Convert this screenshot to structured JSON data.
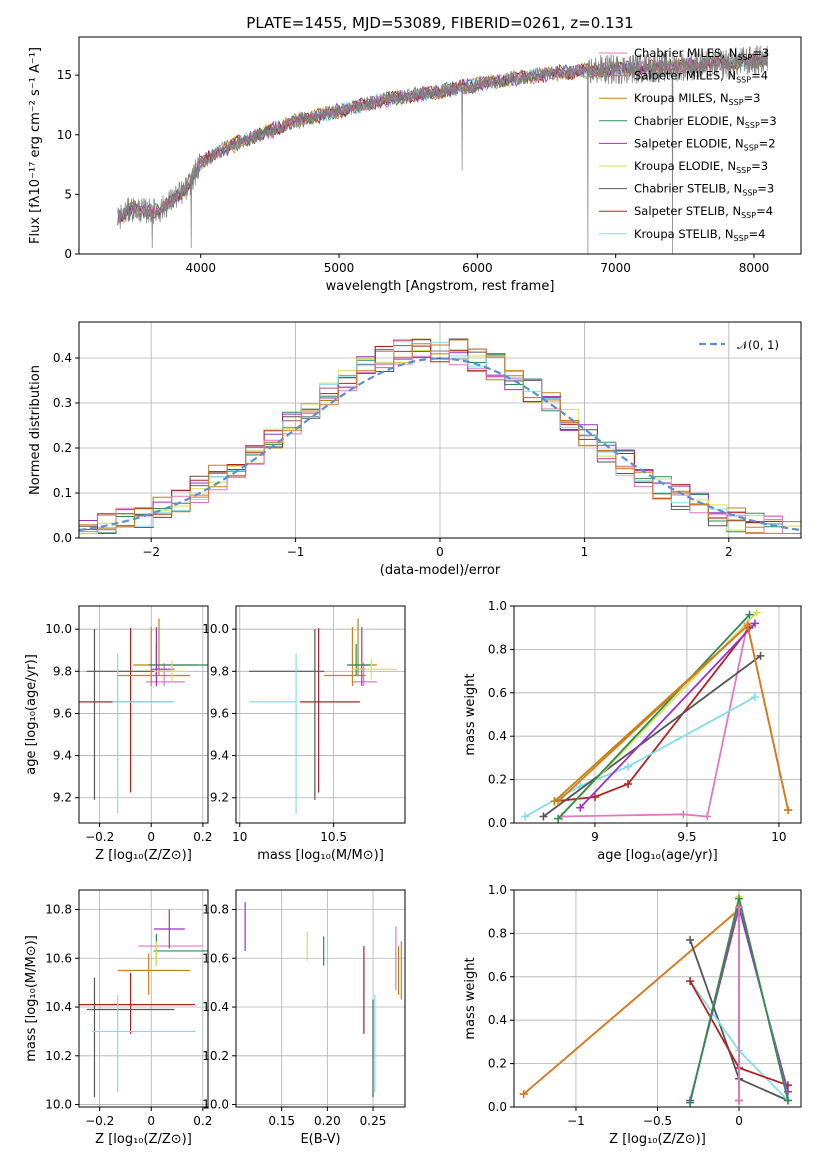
{
  "title": "PLATE=1455, MJD=53089, FIBERID=0261, z=0.131",
  "model_colors": [
    "#b8860b",
    "#2e8b57",
    "#9932cc",
    "#d4e157",
    "#555555",
    "#b22222",
    "#80deea",
    "#e377c2",
    "#d97a1f"
  ],
  "chart_data": [
    {
      "id": "spectrum",
      "type": "line",
      "xlabel": "wavelength [Angstrom, rest frame]",
      "ylabel": "Flux [fλ10⁻¹⁷ erg cm⁻² s⁻¹ A⁻¹]",
      "xlim": [
        3120,
        8340
      ],
      "ylim": [
        0,
        18.2
      ],
      "xticks": [
        4000,
        5000,
        6000,
        7000,
        8000
      ],
      "yticks": [
        0,
        5,
        10,
        15
      ],
      "data_color": "#808080",
      "continuum": {
        "x": [
          3400,
          3500,
          3600,
          3700,
          3800,
          3900,
          4000,
          4100,
          4300,
          4500,
          4700,
          5000,
          5300,
          5600,
          5900,
          6200,
          6600,
          7000,
          7400,
          7800,
          8100
        ],
        "y": [
          3.0,
          3.8,
          3.6,
          3.6,
          4.6,
          5.5,
          7.6,
          8.4,
          9.5,
          10.3,
          11.2,
          12.0,
          12.9,
          13.4,
          14.0,
          14.6,
          15.2,
          15.5,
          15.7,
          16.0,
          16.3
        ]
      },
      "data_dips": [
        {
          "x": 3650,
          "y": 0.5
        },
        {
          "x": 3930,
          "y": 0.5
        },
        {
          "x": 5890,
          "y": 7.0
        },
        {
          "x": 6800,
          "y": 0.0
        },
        {
          "x": 7410,
          "y": 0.0
        }
      ],
      "legend": [
        "Chabrier MILES, N_SSP=3",
        "Salpeter MILES, N_SSP=4",
        "Kroupa MILES, N_SSP=3",
        "Chabrier ELODIE, N_SSP=3",
        "Salpeter ELODIE, N_SSP=2",
        "Kroupa ELODIE, N_SSP=3",
        "Chabrier STELIB, N_SSP=3",
        "Salpeter STELIB, N_SSP=4",
        "Kroupa STELIB, N_SSP=4"
      ],
      "legend_colors": [
        "#e377c2",
        "#d97a1f",
        "#b8860b",
        "#2e8b57",
        "#9932cc",
        "#d4e157",
        "#555555",
        "#b22222",
        "#80deea"
      ]
    },
    {
      "id": "residuals",
      "type": "step",
      "xlabel": "(data-model)/error",
      "ylabel": "Normed distribution",
      "xlim": [
        -2.5,
        2.5
      ],
      "ylim": [
        0,
        0.48
      ],
      "xticks": [
        -2,
        -1,
        0,
        1,
        2
      ],
      "yticks": [
        0.0,
        0.1,
        0.2,
        0.3,
        0.4
      ],
      "bins": 39,
      "normal_label": "𝒩(0, 1)",
      "normal_color": "#5b8fd6",
      "legend_position": "top-right"
    },
    {
      "id": "age-vs-Z",
      "type": "errorbar",
      "xlabel": "Z [log₁₀(Z/Z⊙)]",
      "ylabel": "age  [log₁₀(age/yr)]",
      "xlim": [
        -0.28,
        0.22
      ],
      "ylim": [
        9.08,
        10.11
      ],
      "xticks": [
        -0.2,
        0.0,
        0.2
      ],
      "yticks": [
        9.2,
        9.4,
        9.6,
        9.8,
        10.0
      ],
      "points": [
        {
          "x": -0.08,
          "xerr": [
            0.33,
            0.16
          ],
          "y": 9.655,
          "yerr": [
            0.43,
            0.35
          ],
          "c": 5
        },
        {
          "x": -0.22,
          "xerr": [
            0.03,
            0.3
          ],
          "y": 9.8,
          "yerr": [
            0.61,
            0.2
          ],
          "c": 4
        },
        {
          "x": -0.13,
          "xerr": [
            0.02,
            0.22
          ],
          "y": 9.655,
          "yerr": [
            0.53,
            0.23
          ],
          "c": 6
        },
        {
          "x": 0.05,
          "xerr": [
            0.07,
            0.08
          ],
          "y": 9.75,
          "yerr": [
            0.02,
            0.09
          ],
          "c": 7
        },
        {
          "x": 0.0,
          "xerr": [
            0.13,
            0.15
          ],
          "y": 9.78,
          "yerr": [
            0.05,
            0.23
          ],
          "c": 8
        },
        {
          "x": 0.03,
          "xerr": [
            0.1,
            0.15
          ],
          "y": 9.83,
          "yerr": [
            0.05,
            0.22
          ],
          "c": 0
        },
        {
          "x": 0.02,
          "xerr": [
            0.03,
            0.2
          ],
          "y": 9.83,
          "yerr": [
            0.05,
            0.1
          ],
          "c": 1
        },
        {
          "x": 0.02,
          "xerr": [
            0.02,
            0.07
          ],
          "y": 9.81,
          "yerr": [
            0.08,
            0.2
          ],
          "c": 2
        },
        {
          "x": 0.08,
          "xerr": [
            0.07,
            0.06
          ],
          "y": 9.8,
          "yerr": [
            0.05,
            0.05
          ],
          "c": 3
        }
      ]
    },
    {
      "id": "age-vs-mass",
      "type": "errorbar",
      "xlabel": "mass [log₁₀(M/M⊙)]",
      "ylabel": "",
      "xlim": [
        9.98,
        10.88
      ],
      "ylim": [
        9.08,
        10.11
      ],
      "xticks": [
        10.0,
        10.5
      ],
      "yticks": [
        9.2,
        9.4,
        9.6,
        9.8,
        10.0
      ],
      "points": [
        {
          "x": 10.42,
          "xerr": [
            0.1,
            0.22
          ],
          "y": 9.655,
          "yerr": [
            0.43,
            0.35
          ],
          "c": 5
        },
        {
          "x": 10.4,
          "xerr": [
            0.35,
            0.05
          ],
          "y": 9.8,
          "yerr": [
            0.61,
            0.2
          ],
          "c": 4
        },
        {
          "x": 10.3,
          "xerr": [
            0.25,
            0.0
          ],
          "y": 9.655,
          "yerr": [
            0.53,
            0.23
          ],
          "c": 6
        },
        {
          "x": 10.66,
          "xerr": [
            0.06,
            0.07
          ],
          "y": 9.75,
          "yerr": [
            0.02,
            0.09
          ],
          "c": 7
        },
        {
          "x": 10.6,
          "xerr": [
            0.15,
            0.07
          ],
          "y": 9.78,
          "yerr": [
            0.05,
            0.23
          ],
          "c": 8
        },
        {
          "x": 10.63,
          "xerr": [
            0.05,
            0.1
          ],
          "y": 9.83,
          "yerr": [
            0.05,
            0.22
          ],
          "c": 0
        },
        {
          "x": 10.62,
          "xerr": [
            0.05,
            0.08
          ],
          "y": 9.83,
          "yerr": [
            0.05,
            0.1
          ],
          "c": 1
        },
        {
          "x": 10.65,
          "xerr": [
            0.02,
            0.02
          ],
          "y": 9.81,
          "yerr": [
            0.08,
            0.2
          ],
          "c": 2
        },
        {
          "x": 10.7,
          "xerr": [
            0.1,
            0.14
          ],
          "y": 9.81,
          "yerr": [
            0.05,
            0.05
          ],
          "c": 3
        }
      ]
    },
    {
      "id": "weight-vs-age",
      "type": "line",
      "xlabel": "age  [log₁₀(age/yr)]",
      "ylabel": "mass weight",
      "xlim": [
        8.56,
        10.12
      ],
      "ylim": [
        0.0,
        1.0
      ],
      "xticks": [
        9.0,
        9.5,
        10.0
      ],
      "yticks": [
        0.0,
        0.2,
        0.4,
        0.6,
        0.8,
        1.0
      ],
      "series": [
        {
          "c": 7,
          "x": [
            8.82,
            9.48,
            9.61,
            9.83
          ],
          "y": [
            0.03,
            0.04,
            0.03,
            0.92
          ]
        },
        {
          "c": 5,
          "x": [
            8.78,
            9.0,
            9.18,
            9.84
          ],
          "y": [
            0.1,
            0.12,
            0.18,
            0.9
          ]
        },
        {
          "c": 6,
          "x": [
            8.62,
            8.92,
            9.18,
            9.87
          ],
          "y": [
            0.03,
            0.17,
            0.26,
            0.58
          ]
        },
        {
          "c": 4,
          "x": [
            8.72,
            9.9
          ],
          "y": [
            0.03,
            0.77
          ]
        },
        {
          "c": 2,
          "x": [
            8.92,
            9.87
          ],
          "y": [
            0.07,
            0.92
          ]
        },
        {
          "c": 3,
          "x": [
            8.8,
            9.88
          ],
          "y": [
            0.02,
            0.97
          ]
        },
        {
          "c": 1,
          "x": [
            8.8,
            9.84
          ],
          "y": [
            0.02,
            0.96
          ]
        },
        {
          "c": 0,
          "x": [
            8.78,
            9.83,
            10.05
          ],
          "y": [
            0.1,
            0.91,
            0.06
          ]
        },
        {
          "c": 8,
          "x": [
            8.8,
            9.83,
            10.05
          ],
          "y": [
            0.1,
            0.91,
            0.06
          ]
        }
      ]
    },
    {
      "id": "mass-vs-Z",
      "type": "errorbar",
      "xlabel": "Z [log₁₀(Z/Z⊙)]",
      "ylabel": "mass [log₁₀(M/M⊙)]",
      "xlim": [
        -0.28,
        0.22
      ],
      "ylim": [
        9.99,
        10.88
      ],
      "xticks": [
        -0.2,
        0.0,
        0.2
      ],
      "yticks": [
        10.0,
        10.2,
        10.4,
        10.6,
        10.8
      ],
      "points": [
        {
          "x": -0.08,
          "xerr": [
            0.33,
            0.25
          ],
          "y": 10.41,
          "yerr": [
            0.12,
            0.13
          ],
          "c": 5
        },
        {
          "x": -0.22,
          "xerr": [
            0.03,
            0.31
          ],
          "y": 10.39,
          "yerr": [
            0.36,
            0.13
          ],
          "c": 4
        },
        {
          "x": -0.13,
          "xerr": [
            0.1,
            0.3
          ],
          "y": 10.3,
          "yerr": [
            0.25,
            0.15
          ],
          "c": 6
        },
        {
          "x": 0.05,
          "xerr": [
            0.1,
            0.15
          ],
          "y": 10.65,
          "yerr": [
            0.0,
            0.0
          ],
          "c": 7
        },
        {
          "x": -0.01,
          "xerr": [
            0.12,
            0.11
          ],
          "y": 10.55,
          "yerr": [
            0.1,
            0.07
          ],
          "c": 8
        },
        {
          "x": 0.03,
          "xerr": [
            0.1,
            0.12
          ],
          "y": 10.55,
          "yerr": [
            0.0,
            0.0
          ],
          "c": 0
        },
        {
          "x": 0.02,
          "xerr": [
            0.01,
            0.2
          ],
          "y": 10.63,
          "yerr": [
            0.06,
            0.07
          ],
          "c": 1
        },
        {
          "x": 0.07,
          "xerr": [
            0.06,
            0.06
          ],
          "y": 10.72,
          "yerr": [
            0.08,
            0.08
          ],
          "c": 2
        },
        {
          "x": 0.02,
          "xerr": [
            0.0,
            0.0
          ],
          "y": 10.62,
          "yerr": [
            0.05,
            0.05
          ],
          "c": 3
        }
      ]
    },
    {
      "id": "mass-vs-ebv",
      "type": "errorbar",
      "xlabel": "E(B-V)",
      "ylabel": "",
      "xlim": [
        0.1,
        0.285
      ],
      "ylim": [
        9.99,
        10.88
      ],
      "xticks": [
        0.15,
        0.2,
        0.25
      ],
      "xticklabels": [
        "0.15",
        "0.20",
        "0.25"
      ],
      "yticks": [
        10.0,
        10.2,
        10.4,
        10.6,
        10.8
      ],
      "points": [
        {
          "x": 0.11,
          "xerr": [
            0,
            0
          ],
          "y": 10.73,
          "yerr": [
            0.1,
            0.1
          ],
          "c": 2
        },
        {
          "x": 0.178,
          "xerr": [
            0,
            0
          ],
          "y": 10.65,
          "yerr": [
            0.06,
            0.06
          ],
          "c": 3
        },
        {
          "x": 0.196,
          "xerr": [
            0,
            0
          ],
          "y": 10.63,
          "yerr": [
            0.06,
            0.06
          ],
          "c": 1
        },
        {
          "x": 0.24,
          "xerr": [
            0,
            0
          ],
          "y": 10.47,
          "yerr": [
            0.18,
            0.18
          ],
          "c": 5
        },
        {
          "x": 0.25,
          "xerr": [
            0,
            0
          ],
          "y": 10.23,
          "yerr": [
            0.2,
            0.2
          ],
          "c": 4
        },
        {
          "x": 0.252,
          "xerr": [
            0,
            0
          ],
          "y": 10.25,
          "yerr": [
            0.2,
            0.2
          ],
          "c": 6
        },
        {
          "x": 0.275,
          "xerr": [
            0,
            0
          ],
          "y": 10.6,
          "yerr": [
            0.13,
            0.13
          ],
          "c": 7
        },
        {
          "x": 0.278,
          "xerr": [
            0,
            0
          ],
          "y": 10.55,
          "yerr": [
            0.1,
            0.1
          ],
          "c": 0
        },
        {
          "x": 0.281,
          "xerr": [
            0,
            0
          ],
          "y": 10.55,
          "yerr": [
            0.12,
            0.12
          ],
          "c": 8
        }
      ]
    },
    {
      "id": "weight-vs-Z",
      "type": "line",
      "xlabel": "Z [log₁₀(Z/Z⊙)]",
      "ylabel": "mass weight",
      "xlim": [
        -1.38,
        0.38
      ],
      "ylim": [
        0.0,
        1.0
      ],
      "xticks": [
        -1.0,
        -0.5,
        0.0
      ],
      "yticks": [
        0.0,
        0.2,
        0.4,
        0.6,
        0.8,
        1.0
      ],
      "series": [
        {
          "c": 0,
          "x": [
            -1.32,
            0.0,
            0.0
          ],
          "y": [
            0.06,
            0.91,
            0.03
          ]
        },
        {
          "c": 8,
          "x": [
            -1.32,
            0.0,
            0.0
          ],
          "y": [
            0.06,
            0.91,
            0.03
          ]
        },
        {
          "c": 4,
          "x": [
            -0.3,
            0.0,
            0.3
          ],
          "y": [
            0.77,
            0.13,
            0.03
          ]
        },
        {
          "c": 6,
          "x": [
            -0.3,
            0.0,
            0.3
          ],
          "y": [
            0.58,
            0.26,
            0.03
          ]
        },
        {
          "c": 5,
          "x": [
            -0.3,
            0.0,
            0.3
          ],
          "y": [
            0.58,
            0.18,
            0.1
          ]
        },
        {
          "c": 2,
          "x": [
            -0.3,
            0.0,
            0.3
          ],
          "y": [
            0.03,
            0.92,
            0.07
          ]
        },
        {
          "c": 3,
          "x": [
            -0.3,
            0.0,
            0.3
          ],
          "y": [
            0.02,
            0.97,
            0.03
          ]
        },
        {
          "c": 1,
          "x": [
            -0.3,
            0.0,
            0.3
          ],
          "y": [
            0.02,
            0.96,
            0.03
          ]
        },
        {
          "c": 7,
          "x": [
            0.0,
            0.0
          ],
          "y": [
            0.03,
            0.92
          ]
        }
      ]
    }
  ]
}
